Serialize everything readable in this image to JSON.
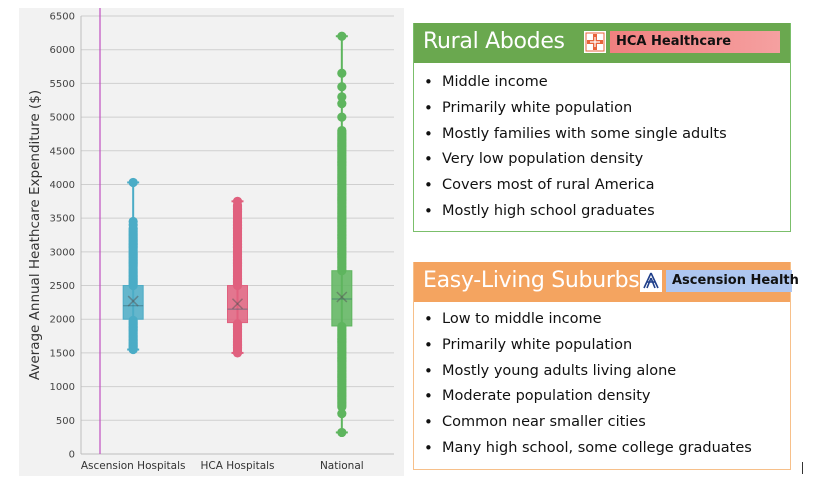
{
  "chart_data": {
    "type": "box",
    "categories": [
      "Ascension Hospitals",
      "HCA Hospitals",
      "National"
    ],
    "ylabel": "Average Annual Heathcare Expenditure ($)",
    "xlabel": "",
    "ylim": [
      0,
      6500
    ],
    "yticks": [
      0,
      500,
      1000,
      1500,
      2000,
      2500,
      3000,
      3500,
      4000,
      4500,
      5000,
      5500,
      6000,
      6500
    ],
    "grid": true,
    "series": [
      {
        "color": "#4bacc6",
        "q1": 2000,
        "median": 2200,
        "q3": 2500,
        "mean": 2270,
        "whisker_low": 1550,
        "whisker_high": 4030,
        "outliers_dense": [
          1550,
          1620,
          1700,
          1800,
          1900,
          2600,
          2700,
          2800,
          2900,
          3000,
          3050,
          3150,
          3250,
          3350
        ],
        "outliers_sparse": [
          3400,
          3450,
          4030
        ]
      },
      {
        "color": "#e0607e",
        "q1": 1950,
        "median": 2150,
        "q3": 2500,
        "mean": 2230,
        "whisker_low": 1500,
        "whisker_high": 3750,
        "outliers_dense": [
          1500,
          1600,
          1700,
          1800,
          1900,
          2600,
          2700,
          2800,
          2900,
          3000,
          3100,
          3200,
          3300,
          3400,
          3500,
          3600,
          3700
        ],
        "outliers_sparse": [
          3750
        ]
      },
      {
        "color": "#5eb55e",
        "q1": 1900,
        "median": 2300,
        "q3": 2720,
        "mean": 2330,
        "whisker_low": 320,
        "whisker_high": 6200,
        "outliers_dense": [
          700,
          900,
          1100,
          1300,
          1500,
          1700,
          2900,
          3100,
          3300,
          3500,
          3700,
          3900,
          4100,
          4300,
          4500,
          4700,
          4800
        ],
        "outliers_sparse": [
          320,
          600,
          5000,
          5200,
          5300,
          5450,
          5650,
          6200
        ]
      }
    ],
    "reference_line": {
      "color": "#c050c0",
      "position": "left-edge"
    }
  },
  "cards": {
    "rural": {
      "title": "Rural Abodes",
      "brand": "HCA Healthcare",
      "items": [
        "Middle income",
        "Primarily white population",
        "Mostly families with some single adults",
        "Very low population density",
        "Covers most of rural America",
        "Mostly high school graduates"
      ],
      "colors": {
        "header": "#6aa84f",
        "border": "#7bbf6b",
        "brand_bg": "#f08080"
      }
    },
    "suburbs": {
      "title": "Easy-Living Suburbs",
      "brand": "Ascension Health",
      "items": [
        "Low to middle income",
        "Primarily white population",
        "Mostly young adults living alone",
        "Moderate population density",
        "Common near smaller cities",
        "Many high school, some college graduates"
      ],
      "colors": {
        "header": "#f4a460",
        "border": "#f7c08a",
        "brand_bg": "#aec6f0"
      }
    }
  },
  "icons": {
    "hca_logo": "hca-logo-icon",
    "ascension_logo": "ascension-logo-icon"
  }
}
